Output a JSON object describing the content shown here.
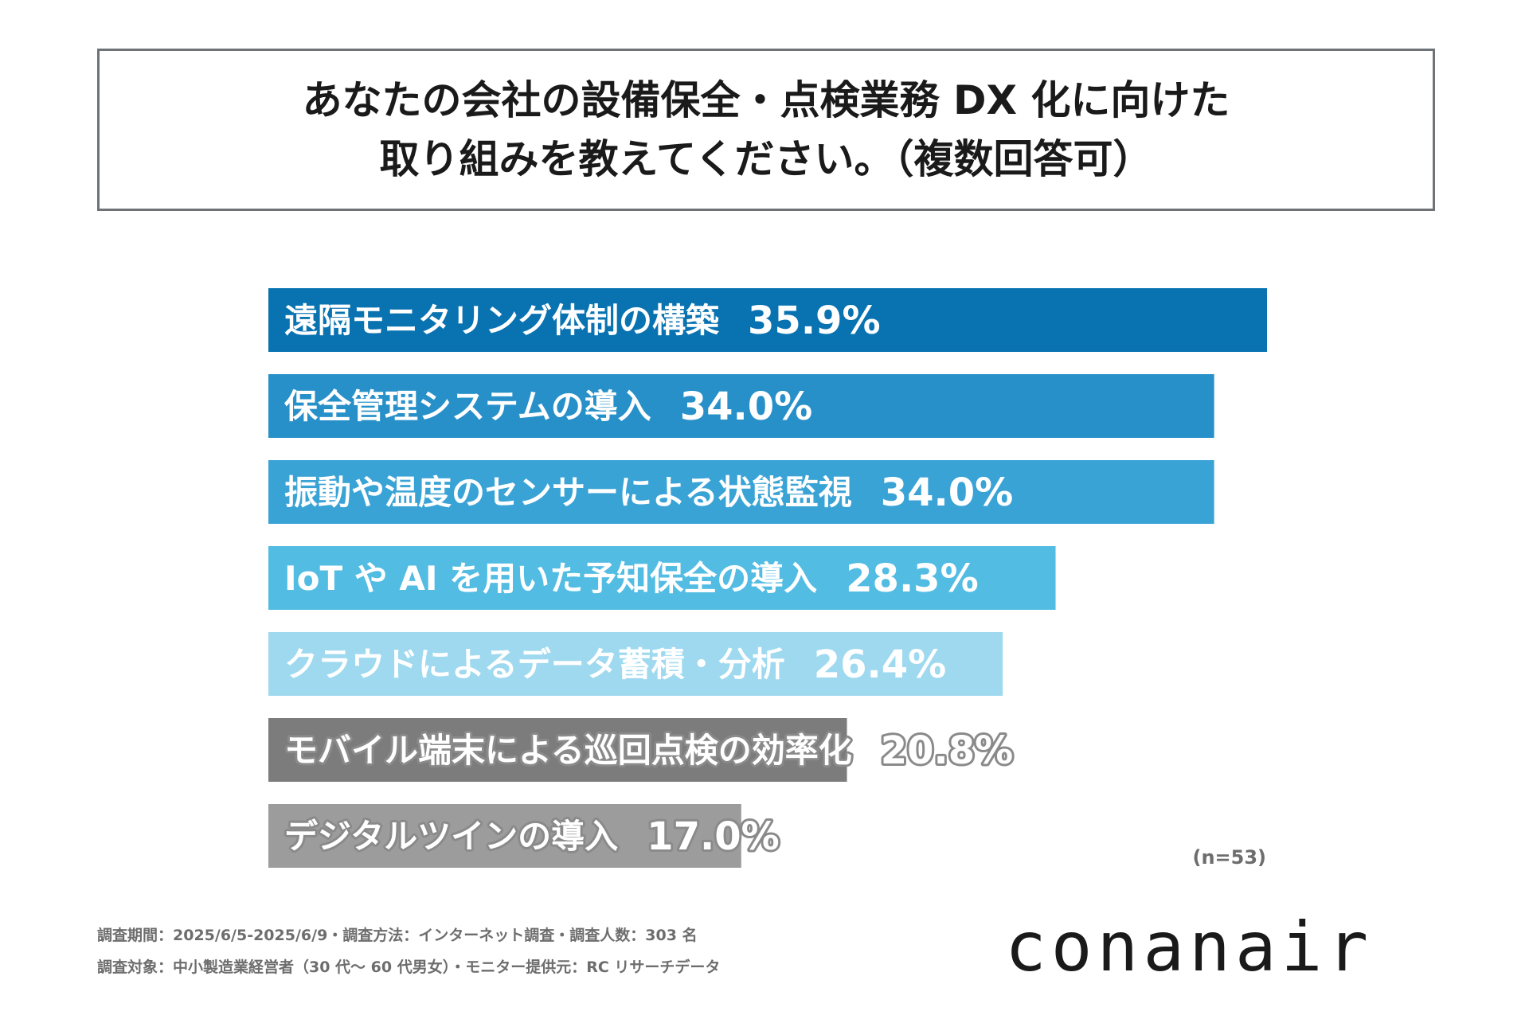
{
  "title": {
    "line1": "あなたの会社の設備保全・点検業務 DX 化に向けた",
    "line2": "取り組みを教えてください。（複数回答可）"
  },
  "chart_data": {
    "type": "bar",
    "orientation": "horizontal",
    "title": "あなたの会社の設備保全・点検業務 DX 化に向けた取り組みを教えてください。（複数回答可）",
    "categories": [
      "遠隔モニタリング体制の構築",
      "保全管理システムの導入",
      "振動や温度のセンサーによる状態監視",
      "IoT や AI を用いた予知保全の導入",
      "クラウドによるデータ蓄積・分析",
      "モバイル端末による巡回点検の効率化",
      "デジタルツインの導入"
    ],
    "values": [
      35.9,
      34.0,
      34.0,
      28.3,
      26.4,
      20.8,
      17.0
    ],
    "value_labels": [
      "35.9%",
      "34.0%",
      "34.0%",
      "28.3%",
      "26.4%",
      "20.8%",
      "17.0%"
    ],
    "colors": [
      "#0973b1",
      "#2790c9",
      "#3aa3d6",
      "#52bce3",
      "#9ed9ef",
      "#7c7c7c",
      "#9c9c9c"
    ],
    "xlim": [
      0,
      35.9
    ],
    "grid": false,
    "legend": "none",
    "xlabel": "",
    "ylabel": "",
    "unit": "%"
  },
  "sample_note": "(n=53)",
  "footnotes": {
    "line1": "調査期間：2025/6/5-2025/6/9・調査方法：インターネット調査・調査人数：303 名",
    "line2": "調査対象：中小製造業経営者（30 代～ 60 代男女）・モニター提供元：RC リサーチデータ"
  },
  "logo": "conanair"
}
